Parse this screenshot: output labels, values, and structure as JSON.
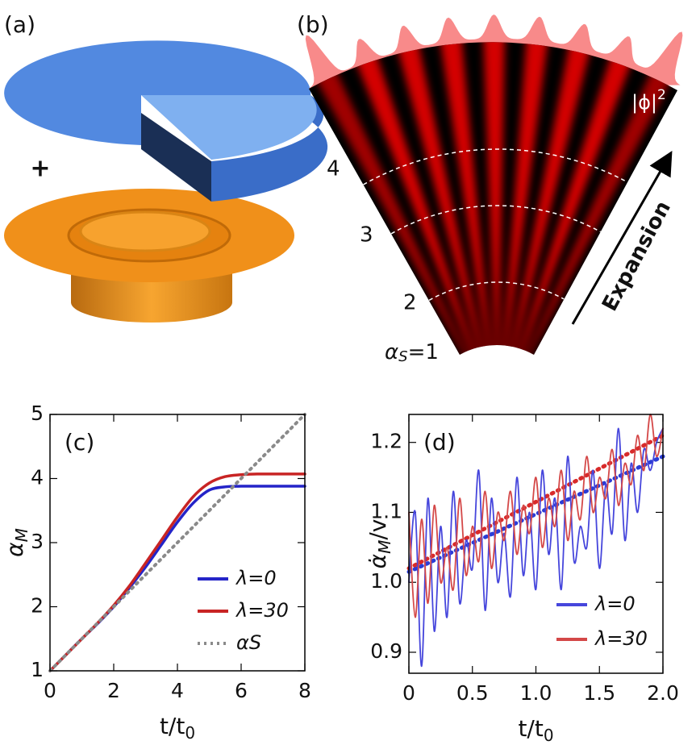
{
  "illustrations": {
    "a": {
      "label": "(a)",
      "plus": "+"
    },
    "b": {
      "label": "(b)",
      "density": "|ϕ|",
      "density_power": "2",
      "levels": [
        "4",
        "3",
        "2"
      ],
      "alpha": "α",
      "alpha_sub": "S",
      "alpha_value": "=1",
      "arrow_label": "Expansion"
    }
  },
  "chart_data": [
    {
      "type": "line",
      "panel_label": "(c)",
      "x_label": "t/t",
      "x_label_sub": "0",
      "y_label": "α",
      "y_label_sub": "M",
      "xlim": [
        0,
        8
      ],
      "ylim": [
        1,
        5
      ],
      "xticks": [
        0,
        2,
        4,
        6,
        8
      ],
      "yticks": [
        1,
        2,
        3,
        4,
        5
      ],
      "x": [
        0,
        0.5,
        1,
        1.5,
        2,
        2.5,
        3,
        3.5,
        4,
        4.5,
        5,
        5.5,
        6,
        6.5,
        7,
        7.5,
        8
      ],
      "series": [
        {
          "name": "λ=0",
          "color": "#2424c8",
          "values": [
            1,
            1.25,
            1.5,
            1.74,
            2.0,
            2.3,
            2.62,
            2.97,
            3.32,
            3.62,
            3.82,
            3.87,
            3.88,
            3.88,
            3.88,
            3.88,
            3.88
          ]
        },
        {
          "name": "λ=30",
          "color": "#c82424",
          "values": [
            1,
            1.25,
            1.5,
            1.75,
            2.02,
            2.33,
            2.68,
            3.04,
            3.4,
            3.72,
            3.93,
            4.03,
            4.06,
            4.07,
            4.07,
            4.07,
            4.07
          ]
        },
        {
          "name": "αS",
          "color": "#8a8a8a",
          "dashed": true,
          "values": [
            1,
            1.25,
            1.5,
            1.75,
            2,
            2.25,
            2.5,
            2.75,
            3,
            3.25,
            3.5,
            3.75,
            4,
            4.25,
            4.5,
            4.75,
            5
          ]
        }
      ]
    },
    {
      "type": "line",
      "panel_label": "(d)",
      "x_label": "t/t",
      "x_label_sub": "0",
      "y_label": "α̇",
      "y_label_sub": "M",
      "y_label_tail": "/v",
      "xlim": [
        0,
        2
      ],
      "ylim": [
        0.87,
        1.24
      ],
      "xticks": [
        0,
        0.5,
        {
          "value": 1,
          "label": "1.0"
        },
        1.5,
        {
          "value": 2,
          "label": "2.0"
        }
      ],
      "yticks": [
        0.9,
        {
          "value": 1,
          "label": "1.0"
        },
        1.1,
        1.2
      ],
      "x": [
        0,
        0.05,
        0.1,
        0.15,
        0.2,
        0.25,
        0.3,
        0.35,
        0.4,
        0.45,
        0.5,
        0.55,
        0.6,
        0.65,
        0.7,
        0.75,
        0.8,
        0.85,
        0.9,
        0.95,
        1,
        1.05,
        1.1,
        1.15,
        1.2,
        1.25,
        1.3,
        1.35,
        1.4,
        1.45,
        1.5,
        1.55,
        1.6,
        1.65,
        1.7,
        1.75,
        1.8,
        1.85,
        1.9,
        1.95,
        2
      ],
      "series": [
        {
          "name": "λ=0",
          "color": "#4646dc",
          "values": [
            1.0,
            1.1,
            0.88,
            1.12,
            0.93,
            1.08,
            0.95,
            1.13,
            0.97,
            1.06,
            1.02,
            1.16,
            0.96,
            1.12,
            1.0,
            1.07,
            0.98,
            1.15,
            1.01,
            1.1,
            0.99,
            1.16,
            1.04,
            1.12,
            0.99,
            1.18,
            1.03,
            1.08,
            1.05,
            1.16,
            1.02,
            1.14,
            1.07,
            1.22,
            1.06,
            1.17,
            1.1,
            1.19,
            1.16,
            1.2,
            1.22
          ]
        },
        {
          "name": "λ=30",
          "color": "#d44848",
          "values": [
            1.1,
            0.95,
            1.09,
            0.97,
            1.11,
            1.0,
            1.05,
            0.99,
            1.12,
            1.01,
            1.08,
            1.03,
            1.13,
            1.02,
            1.1,
            1.06,
            1.13,
            1.04,
            1.11,
            1.07,
            1.15,
            1.05,
            1.12,
            1.08,
            1.16,
            1.06,
            1.13,
            1.09,
            1.18,
            1.1,
            1.15,
            1.12,
            1.19,
            1.11,
            1.17,
            1.14,
            1.21,
            1.16,
            1.24,
            1.18,
            1.22
          ]
        }
      ],
      "fits": [
        {
          "color": "#2a3cd6",
          "x": [
            0,
            2
          ],
          "values": [
            1.015,
            1.18
          ]
        },
        {
          "color": "#d82a2a",
          "x": [
            0,
            2
          ],
          "values": [
            1.02,
            1.21
          ]
        }
      ]
    }
  ]
}
